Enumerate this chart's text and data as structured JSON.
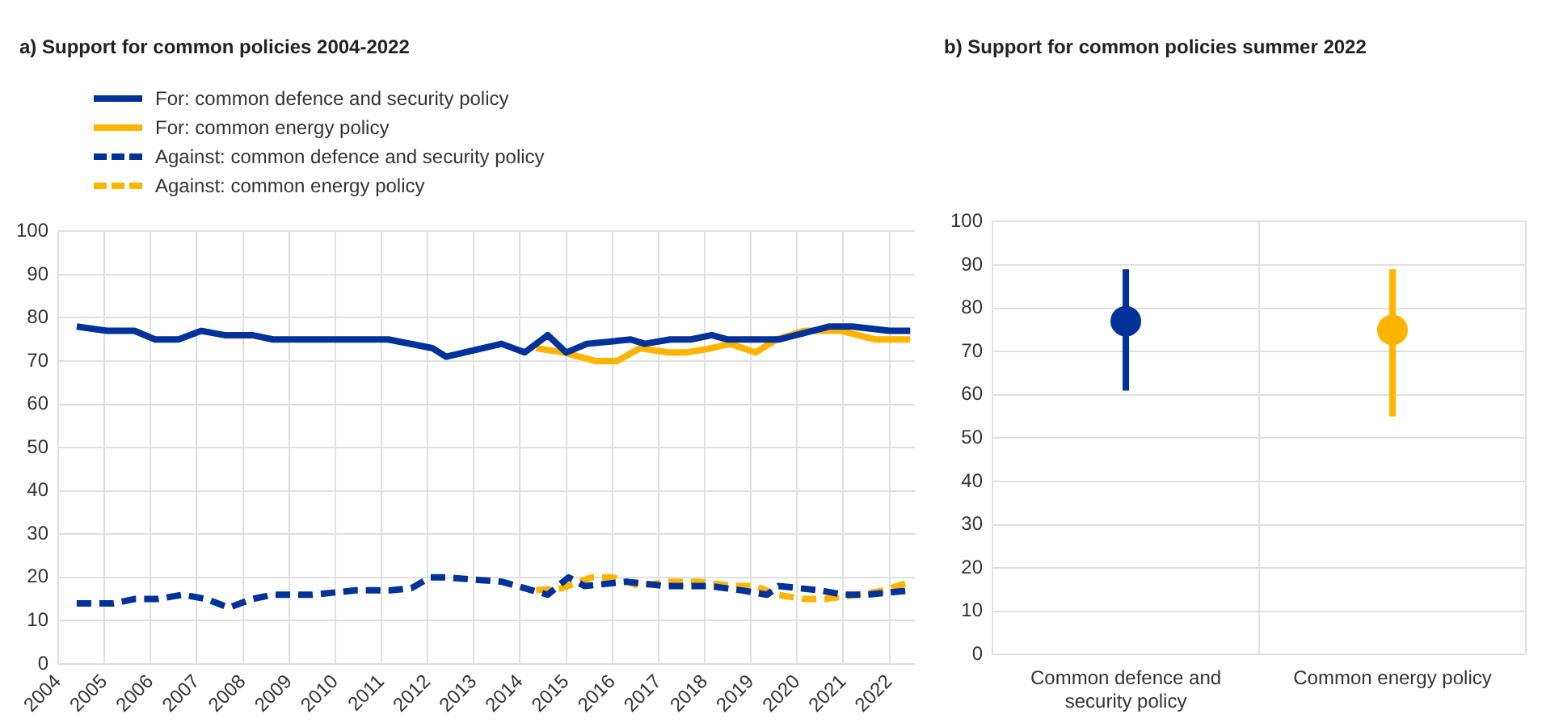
{
  "chart_data": [
    {
      "type": "line",
      "title": "a) Support for common policies 2004-2022",
      "legend": "top left",
      "grid": true,
      "marker": "none",
      "xlim": [
        2004,
        2022.55
      ],
      "xticks": [
        2004,
        2005,
        2006,
        2007,
        2008,
        2009,
        2010,
        2011,
        2012,
        2013,
        2014,
        2015,
        2016,
        2017,
        2018,
        2019,
        2020,
        2021,
        2022
      ],
      "ylim": [
        0,
        100
      ],
      "yticks": [
        0,
        10,
        20,
        30,
        40,
        50,
        60,
        70,
        80,
        90,
        100
      ],
      "series": [
        {
          "name": "For: common defence and security policy",
          "color": "#003299",
          "line_style": "solid",
          "x": [
            2004.4,
            2005.05,
            2005.65,
            2006.1,
            2006.6,
            2007.1,
            2007.6,
            2008.2,
            2008.65,
            2009.6,
            2011.15,
            2012.1,
            2012.4,
            2013.6,
            2014.1,
            2014.6,
            2015.0,
            2015.45,
            2016.4,
            2016.7,
            2017.25,
            2017.7,
            2018.15,
            2018.5,
            2019.6,
            2020.7,
            2021.2,
            2022.0,
            2022.45
          ],
          "values": [
            78,
            77,
            77,
            75,
            75,
            77,
            76,
            76,
            75,
            75,
            75,
            73,
            71,
            74,
            72,
            76,
            72,
            74,
            75,
            74,
            75,
            75,
            76,
            75,
            75,
            78,
            78,
            77,
            77
          ]
        },
        {
          "name": "For: common energy policy",
          "color": "#ffb400",
          "line_style": "solid",
          "x": [
            2014.35,
            2014.95,
            2015.65,
            2016.1,
            2016.6,
            2017.2,
            2017.6,
            2018.15,
            2018.55,
            2019.1,
            2019.55,
            2020.15,
            2020.95,
            2021.7,
            2022.45
          ],
          "values": [
            73,
            72,
            70,
            70,
            73,
            72,
            72,
            73,
            74,
            72,
            75,
            77,
            77,
            75,
            75
          ]
        },
        {
          "name": "Against: common defence and security policy",
          "color": "#003299",
          "line_style": "dashed",
          "x": [
            2004.4,
            2005.2,
            2005.65,
            2006.15,
            2006.7,
            2007.2,
            2007.7,
            2008.2,
            2008.65,
            2009.5,
            2010.45,
            2011.2,
            2011.65,
            2012.05,
            2012.4,
            2013.6,
            2014.1,
            2014.6,
            2015.05,
            2015.4,
            2016.3,
            2017.15,
            2018.1,
            2018.8,
            2019.35,
            2019.6,
            2020.5,
            2021.0,
            2021.5,
            2022.45
          ],
          "values": [
            14,
            14,
            15,
            15,
            16,
            15,
            13,
            15,
            16,
            16,
            17,
            17,
            17.5,
            20,
            20,
            19,
            17.5,
            16,
            20,
            18,
            19,
            18,
            18,
            17,
            16,
            18,
            17,
            16,
            16,
            17
          ]
        },
        {
          "name": "Against: common energy policy",
          "color": "#ffb400",
          "line_style": "dashed",
          "x": [
            2014.35,
            2014.9,
            2015.55,
            2016.0,
            2016.6,
            2017.2,
            2017.9,
            2018.6,
            2019.1,
            2019.55,
            2020.15,
            2020.6,
            2021.3,
            2021.9,
            2022.45
          ],
          "values": [
            17,
            17.5,
            20,
            20,
            18,
            19,
            19,
            18,
            18,
            16,
            15,
            15,
            16,
            17,
            19
          ]
        }
      ]
    },
    {
      "type": "scatter",
      "title": "b) Support for common policies summer 2022",
      "grid": true,
      "marker": "circle",
      "categories": [
        "Common defence and security policy",
        "Common energy policy"
      ],
      "values": [
        77,
        75
      ],
      "colors": [
        "#003299",
        "#ffb400"
      ],
      "errors": [
        [
          61,
          89
        ],
        [
          55,
          89
        ]
      ],
      "ylim": [
        0,
        100
      ],
      "yticks": [
        0,
        10,
        20,
        30,
        40,
        50,
        60,
        70,
        80,
        90,
        100
      ]
    }
  ]
}
